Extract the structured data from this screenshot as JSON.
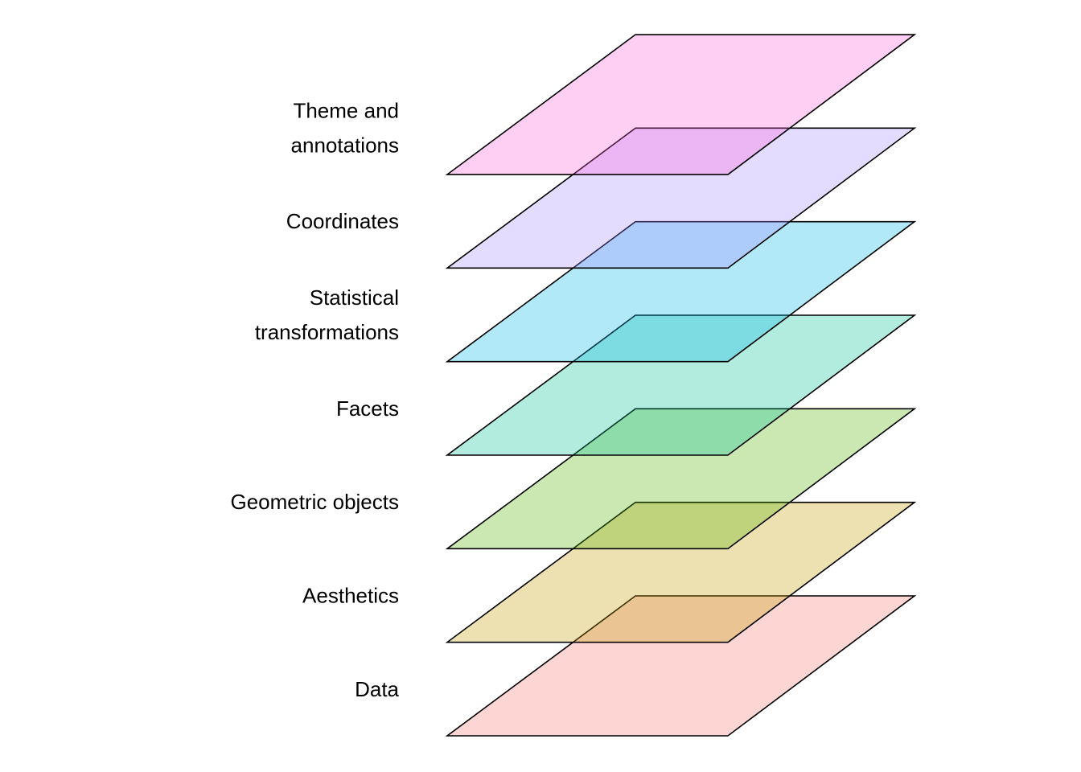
{
  "layers": [
    {
      "label": [
        "Theme and",
        "annotations"
      ],
      "color": "#fb61d7"
    },
    {
      "label": [
        "Coordinates"
      ],
      "color": "#a58aff"
    },
    {
      "label": [
        "Statistical",
        "transformations"
      ],
      "color": "#00b6eb"
    },
    {
      "label": [
        "Facets"
      ],
      "color": "#00c094"
    },
    {
      "label": [
        "Geometric objects"
      ],
      "color": "#53b400"
    },
    {
      "label": [
        "Aesthetics"
      ],
      "color": "#c49a00"
    },
    {
      "label": [
        "Data"
      ],
      "color": "#f8766d"
    }
  ]
}
